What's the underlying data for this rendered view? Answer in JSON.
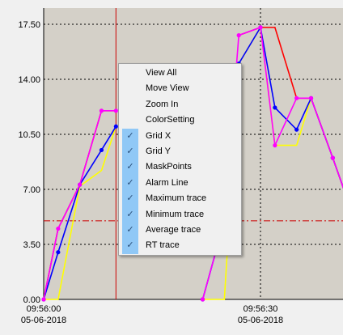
{
  "chart_data": {
    "type": "line",
    "x": [
      "09:56:00",
      "09:56:02",
      "09:56:05",
      "09:56:08",
      "09:56:10",
      "09:56:12",
      "09:56:14",
      "09:56:17",
      "09:56:20",
      "09:56:22",
      "09:56:25",
      "09:56:27",
      "09:56:30",
      "09:56:32",
      "09:56:35",
      "09:56:37",
      "09:56:40",
      "09:56:42"
    ],
    "x_date": "05-06-2018",
    "ylim": [
      0,
      17.5
    ],
    "yticks": [
      "0.00",
      "3.50",
      "7.00",
      "10.50",
      "14.00",
      "17.50"
    ],
    "xticks": [
      {
        "time": "09:56:00",
        "date": "05-06-2018"
      },
      {
        "time": "09:56:30",
        "date": "05-06-2018"
      }
    ],
    "grid_x": true,
    "grid_y": true,
    "alarm_line": 5.0,
    "cursor_x": "09:56:10",
    "series": [
      {
        "color": "#ff0000",
        "values": [
          0.0,
          4.5,
          7.3,
          12.0,
          12.0,
          null,
          null,
          null,
          null,
          null,
          null,
          16.8,
          17.3,
          17.3,
          12.8,
          12.8,
          9.0,
          6.4
        ],
        "markers": false
      },
      {
        "color": "#ffff00",
        "values": [
          0.0,
          0.0,
          7.2,
          8.2,
          11.0,
          null,
          null,
          null,
          null,
          0.0,
          0.0,
          15.0,
          17.3,
          9.8,
          9.8,
          12.8,
          9.0,
          6.4
        ],
        "markers": false
      },
      {
        "color": "#0000ff",
        "values": [
          0.0,
          3.0,
          7.3,
          9.5,
          11.0,
          null,
          null,
          null,
          null,
          0.0,
          5.0,
          15.0,
          17.3,
          12.2,
          10.8,
          12.8,
          9.0,
          6.4
        ],
        "markers": true
      },
      {
        "color": "#ff00ff",
        "values": [
          0.0,
          4.5,
          7.3,
          12.0,
          12.0,
          null,
          null,
          null,
          null,
          0.0,
          5.0,
          16.8,
          17.3,
          9.8,
          12.8,
          12.8,
          9.0,
          6.4
        ],
        "markers": true
      }
    ]
  },
  "context_menu": {
    "items": [
      {
        "label": "View All",
        "checked": false
      },
      {
        "label": "Move View",
        "checked": false
      },
      {
        "label": "Zoom In",
        "checked": false
      },
      {
        "label": "ColorSetting",
        "checked": false
      },
      {
        "label": "Grid X",
        "checked": true
      },
      {
        "label": "Grid Y",
        "checked": true
      },
      {
        "label": "MaskPoints",
        "checked": true
      },
      {
        "label": "Alarm Line",
        "checked": true
      },
      {
        "label": "Maximum trace",
        "checked": true
      },
      {
        "label": "Minimum trace",
        "checked": true
      },
      {
        "label": "Average trace",
        "checked": true
      },
      {
        "label": "RT trace",
        "checked": true
      }
    ]
  },
  "colors": {
    "plot_bg": "#d4d0c8",
    "grid": "#000000",
    "alarm": "#cc0000",
    "cursor": "#cc0000",
    "menu_check_bg": "#90c8f6"
  },
  "icons": {
    "check": "check-icon"
  }
}
